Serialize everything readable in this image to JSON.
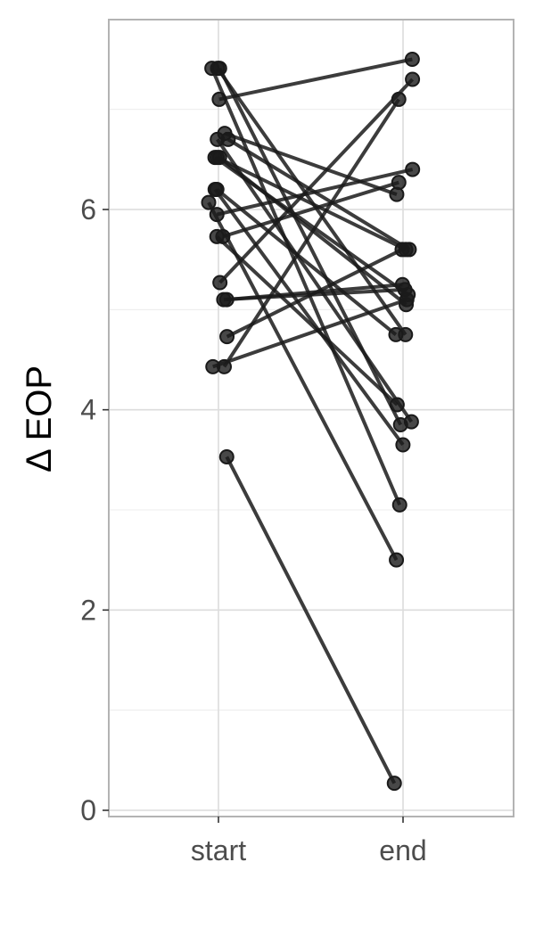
{
  "chart_data": {
    "type": "line",
    "title": "",
    "xlabel": "",
    "ylabel": "Δ EOP",
    "categories": [
      "start",
      "end"
    ],
    "y_ticks": [
      0,
      2,
      4,
      6
    ],
    "ylim": [
      -0.1,
      7.8
    ],
    "grid": true,
    "colors": {
      "line": "#1a1a1a",
      "point": "#1a1a1a",
      "grid_major": "#dcdcdc",
      "grid_minor": "#ececec",
      "panel_border": "#b3b3b3",
      "tick_label": "#4d4d4d"
    },
    "pairs": [
      {
        "start": 3.53,
        "end": 0.27
      },
      {
        "start": 7.41,
        "end": 3.85
      },
      {
        "start": 7.41,
        "end": 4.75
      },
      {
        "start": 7.41,
        "end": 3.05
      },
      {
        "start": 7.1,
        "end": 7.5
      },
      {
        "start": 6.76,
        "end": 6.15
      },
      {
        "start": 6.7,
        "end": 5.6
      },
      {
        "start": 6.7,
        "end": 3.88
      },
      {
        "start": 6.52,
        "end": 5.6
      },
      {
        "start": 6.52,
        "end": 5.15
      },
      {
        "start": 6.52,
        "end": 5.05
      },
      {
        "start": 6.2,
        "end": 4.75
      },
      {
        "start": 6.2,
        "end": 3.65
      },
      {
        "start": 6.07,
        "end": 2.5
      },
      {
        "start": 5.95,
        "end": 6.4
      },
      {
        "start": 5.73,
        "end": 6.27
      },
      {
        "start": 5.73,
        "end": 4.05
      },
      {
        "start": 5.27,
        "end": 7.3
      },
      {
        "start": 5.1,
        "end": 5.25
      },
      {
        "start": 5.1,
        "end": 5.2
      },
      {
        "start": 4.73,
        "end": 5.6
      },
      {
        "start": 4.43,
        "end": 5.1
      },
      {
        "start": 4.43,
        "end": 7.1
      }
    ]
  }
}
